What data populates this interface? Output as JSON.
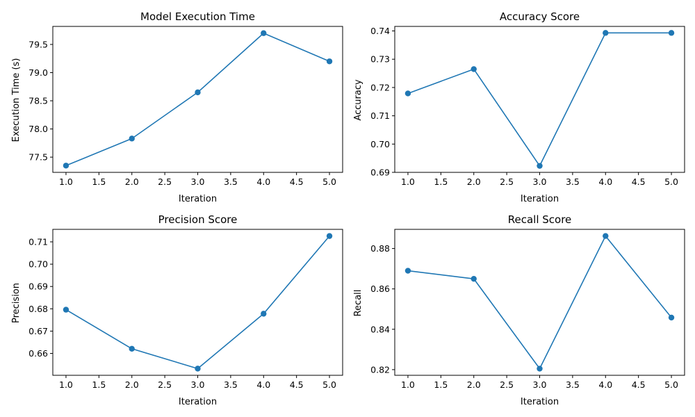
{
  "figure": {
    "line_color": "#1f77b4",
    "background": "#ffffff"
  },
  "chart_data": [
    {
      "type": "line",
      "title": "Model Execution Time",
      "xlabel": "Iteration",
      "ylabel": "Execution Time (s)",
      "x": [
        1,
        2,
        3,
        4,
        5
      ],
      "y": [
        77.35,
        77.83,
        78.65,
        79.7,
        79.2
      ],
      "xlim": [
        0.8,
        5.2
      ],
      "ylim": [
        77.23,
        79.82
      ],
      "xticks": [
        1.0,
        1.5,
        2.0,
        2.5,
        3.0,
        3.5,
        4.0,
        4.5,
        5.0
      ],
      "xtick_labels": [
        "1.0",
        "1.5",
        "2.0",
        "2.5",
        "3.0",
        "3.5",
        "4.0",
        "4.5",
        "5.0"
      ],
      "yticks": [
        77.5,
        78.0,
        78.5,
        79.0,
        79.5
      ],
      "ytick_labels": [
        "77.5",
        "78.0",
        "78.5",
        "79.0",
        "79.5"
      ],
      "markers": true,
      "grid": false
    },
    {
      "type": "line",
      "title": "Accuracy Score",
      "xlabel": "Iteration",
      "ylabel": "Accuracy",
      "x": [
        1,
        2,
        3,
        4,
        5
      ],
      "y": [
        0.7179,
        0.7265,
        0.6923,
        0.7393,
        0.7393
      ],
      "xlim": [
        0.8,
        5.2
      ],
      "ylim": [
        0.69,
        0.7416
      ],
      "xticks": [
        1.0,
        1.5,
        2.0,
        2.5,
        3.0,
        3.5,
        4.0,
        4.5,
        5.0
      ],
      "xtick_labels": [
        "1.0",
        "1.5",
        "2.0",
        "2.5",
        "3.0",
        "3.5",
        "4.0",
        "4.5",
        "5.0"
      ],
      "yticks": [
        0.69,
        0.7,
        0.71,
        0.72,
        0.73,
        0.74
      ],
      "ytick_labels": [
        "0.69",
        "0.70",
        "0.71",
        "0.72",
        "0.73",
        "0.74"
      ],
      "markers": true,
      "grid": false
    },
    {
      "type": "line",
      "title": "Precision Score",
      "xlabel": "Iteration",
      "ylabel": "Precision",
      "x": [
        1,
        2,
        3,
        4,
        5
      ],
      "y": [
        0.6796,
        0.6621,
        0.6532,
        0.6778,
        0.7126
      ],
      "xlim": [
        0.8,
        5.2
      ],
      "ylim": [
        0.6502,
        0.7156
      ],
      "xticks": [
        1.0,
        1.5,
        2.0,
        2.5,
        3.0,
        3.5,
        4.0,
        4.5,
        5.0
      ],
      "xtick_labels": [
        "1.0",
        "1.5",
        "2.0",
        "2.5",
        "3.0",
        "3.5",
        "4.0",
        "4.5",
        "5.0"
      ],
      "yticks": [
        0.66,
        0.67,
        0.68,
        0.69,
        0.7,
        0.71
      ],
      "ytick_labels": [
        "0.66",
        "0.67",
        "0.68",
        "0.69",
        "0.70",
        "0.71"
      ],
      "markers": true,
      "grid": false
    },
    {
      "type": "line",
      "title": "Recall Score",
      "xlabel": "Iteration",
      "ylabel": "Recall",
      "x": [
        1,
        2,
        3,
        4,
        5
      ],
      "y": [
        0.869,
        0.865,
        0.8205,
        0.8862,
        0.8458
      ],
      "xlim": [
        0.8,
        5.2
      ],
      "ylim": [
        0.8172,
        0.8895
      ],
      "xticks": [
        1.0,
        1.5,
        2.0,
        2.5,
        3.0,
        3.5,
        4.0,
        4.5,
        5.0
      ],
      "xtick_labels": [
        "1.0",
        "1.5",
        "2.0",
        "2.5",
        "3.0",
        "3.5",
        "4.0",
        "4.5",
        "5.0"
      ],
      "yticks": [
        0.82,
        0.84,
        0.86,
        0.88
      ],
      "ytick_labels": [
        "0.82",
        "0.84",
        "0.86",
        "0.88"
      ],
      "markers": true,
      "grid": false
    }
  ]
}
